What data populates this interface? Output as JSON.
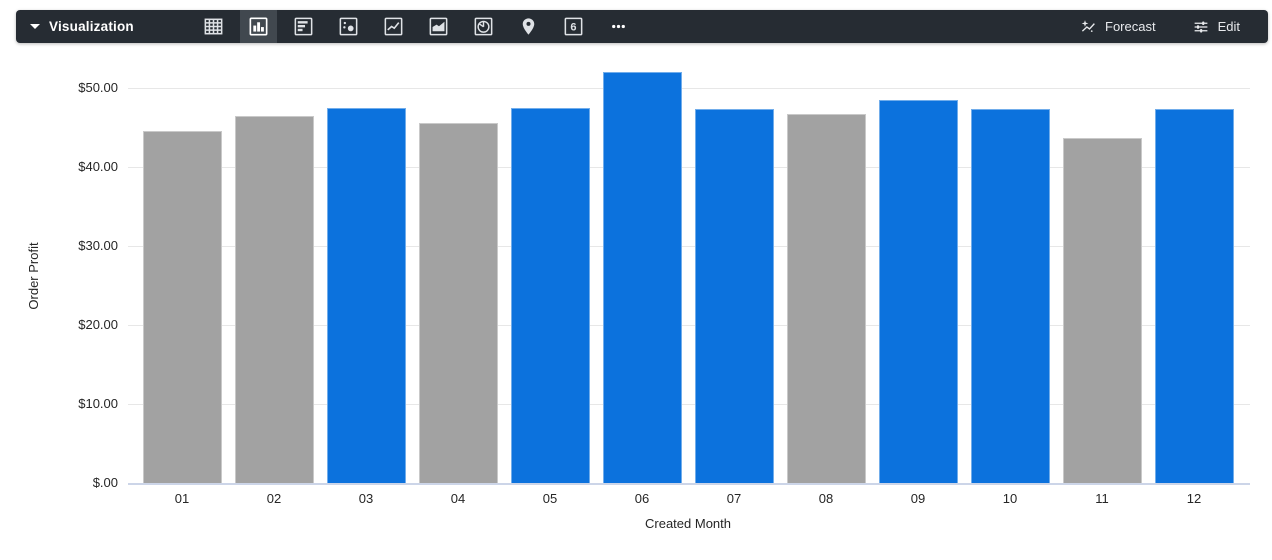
{
  "toolbar": {
    "title": "Visualization",
    "icons": [
      {
        "name": "table"
      },
      {
        "name": "column-chart",
        "selected": true
      },
      {
        "name": "bar-chart"
      },
      {
        "name": "scatter-chart"
      },
      {
        "name": "line-chart"
      },
      {
        "name": "area-chart"
      },
      {
        "name": "pie-chart"
      },
      {
        "name": "map"
      },
      {
        "name": "single-value"
      },
      {
        "name": "more-options"
      }
    ],
    "single_value_glyph": "6",
    "forecast_label": "Forecast",
    "edit_label": "Edit"
  },
  "chart_data": {
    "type": "bar",
    "title": "",
    "xlabel": "Created Month",
    "ylabel": "Order Profit",
    "categories": [
      "01",
      "02",
      "03",
      "04",
      "05",
      "06",
      "07",
      "08",
      "09",
      "10",
      "11",
      "12"
    ],
    "values": [
      44.5,
      46.4,
      47.5,
      45.6,
      47.5,
      52.0,
      47.3,
      46.7,
      48.5,
      47.4,
      43.7,
      47.3
    ],
    "bar_colors": [
      "gray",
      "gray",
      "blue",
      "gray",
      "blue",
      "blue",
      "blue",
      "gray",
      "blue",
      "blue",
      "gray",
      "blue"
    ],
    "palette": {
      "blue": "#0c72dd",
      "gray": "#a2a2a2"
    },
    "y_ticks": [
      {
        "value": 0,
        "label": "$.00"
      },
      {
        "value": 10,
        "label": "$10.00"
      },
      {
        "value": 20,
        "label": "$20.00"
      },
      {
        "value": 30,
        "label": "$30.00"
      },
      {
        "value": 40,
        "label": "$40.00"
      },
      {
        "value": 50,
        "label": "$50.00"
      }
    ],
    "ylim": [
      0,
      53
    ],
    "grid": true,
    "legend": "none"
  },
  "colors": {
    "toolbar_bg": "#262c33",
    "selected_tool_bg": "#41484f",
    "grid_line": "#e7e7e7",
    "axis_line": "#ccd5e8",
    "tick_text": "#262626"
  }
}
